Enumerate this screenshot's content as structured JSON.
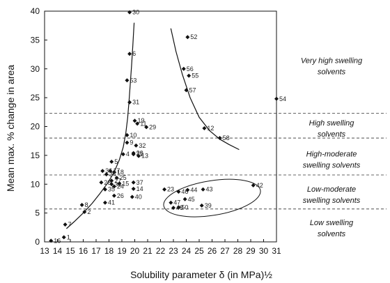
{
  "chart_data": {
    "type": "scatter",
    "xlabel": "Solubility parameter δ (in MPa)½",
    "ylabel": "Mean max. % change in area",
    "xlim": [
      13,
      31
    ],
    "ylim": [
      0,
      40
    ],
    "x_ticks": [
      13,
      14,
      15,
      16,
      17,
      18,
      19,
      20,
      21,
      22,
      23,
      24,
      25,
      26,
      27,
      28,
      29,
      30,
      31
    ],
    "y_ticks": [
      0,
      5,
      10,
      15,
      20,
      25,
      30,
      35,
      40
    ],
    "marker": "diamond",
    "color": "#111111",
    "points": [
      {
        "label": "1",
        "x": 14.5,
        "y": 0.8
      },
      {
        "label": "2",
        "x": 16.1,
        "y": 5.2
      },
      {
        "label": "7",
        "x": 14.6,
        "y": 3.0
      },
      {
        "label": "8",
        "x": 15.9,
        "y": 6.4
      },
      {
        "label": "16",
        "x": 13.5,
        "y": 0.2
      },
      {
        "label": "4",
        "x": 19.1,
        "y": 15.2
      },
      {
        "label": "5",
        "x": 18.2,
        "y": 13.9
      },
      {
        "label": "9",
        "x": 19.4,
        "y": 17.2
      },
      {
        "label": "10",
        "x": 19.4,
        "y": 18.5
      },
      {
        "label": "11",
        "x": 20.2,
        "y": 20.5
      },
      {
        "label": "13",
        "x": 20.3,
        "y": 14.9
      },
      {
        "label": "14",
        "x": 19.9,
        "y": 9.2
      },
      {
        "label": "15",
        "x": 18.8,
        "y": 10.1
      },
      {
        "label": "17",
        "x": 18.1,
        "y": 12.3
      },
      {
        "label": "18",
        "x": 18.4,
        "y": 12.1
      },
      {
        "label": "19",
        "x": 20.0,
        "y": 21.0
      },
      {
        "label": "20",
        "x": 19.9,
        "y": 15.4
      },
      {
        "label": "21",
        "x": 19.9,
        "y": 15.2
      },
      {
        "label": "23",
        "x": 22.3,
        "y": 9.1
      },
      {
        "label": "24",
        "x": 18.4,
        "y": 9.6
      },
      {
        "label": "25",
        "x": 18.6,
        "y": 11.1
      },
      {
        "label": "26",
        "x": 18.4,
        "y": 8.0
      },
      {
        "label": "27",
        "x": 18.2,
        "y": 10.6
      },
      {
        "label": "28",
        "x": 17.4,
        "y": 10.3
      },
      {
        "label": "29",
        "x": 20.9,
        "y": 19.9
      },
      {
        "label": "30",
        "x": 19.6,
        "y": 39.8
      },
      {
        "label": "31",
        "x": 19.6,
        "y": 24.2
      },
      {
        "label": "32",
        "x": 20.1,
        "y": 16.7
      },
      {
        "label": "33",
        "x": 18.2,
        "y": 10.0
      },
      {
        "label": "34",
        "x": 17.8,
        "y": 11.7
      },
      {
        "label": "35",
        "x": 17.7,
        "y": 9.1
      },
      {
        "label": "36",
        "x": 17.5,
        "y": 12.3
      },
      {
        "label": "37",
        "x": 19.9,
        "y": 10.3
      },
      {
        "label": "39",
        "x": 25.2,
        "y": 6.3
      },
      {
        "label": "40",
        "x": 19.8,
        "y": 7.8
      },
      {
        "label": "41",
        "x": 17.7,
        "y": 6.8
      },
      {
        "label": "42",
        "x": 29.2,
        "y": 9.8
      },
      {
        "label": "43",
        "x": 25.3,
        "y": 9.1
      },
      {
        "label": "44",
        "x": 24.1,
        "y": 9.0
      },
      {
        "label": "45",
        "x": 23.9,
        "y": 7.4
      },
      {
        "label": "46",
        "x": 23.4,
        "y": 8.7
      },
      {
        "label": "47",
        "x": 22.8,
        "y": 6.8
      },
      {
        "label": "48",
        "x": 23.0,
        "y": 5.9
      },
      {
        "label": "50",
        "x": 23.4,
        "y": 6.0
      },
      {
        "label": "52",
        "x": 24.1,
        "y": 35.5
      },
      {
        "label": "53",
        "x": 19.4,
        "y": 28.0
      },
      {
        "label": "54",
        "x": 31.0,
        "y": 24.8
      },
      {
        "label": "55",
        "x": 24.2,
        "y": 28.8
      },
      {
        "label": "56",
        "x": 23.8,
        "y": 30.0
      },
      {
        "label": "57",
        "x": 24.0,
        "y": 26.3
      },
      {
        "label": "58",
        "x": 26.6,
        "y": 18.0
      },
      {
        "label": "12",
        "x": 25.4,
        "y": 19.7
      },
      {
        "label": "6",
        "x": 19.6,
        "y": 32.6
      }
    ],
    "curves": [
      {
        "x": [
          14.7,
          15.3,
          16.0,
          16.7,
          17.3,
          17.9,
          18.4,
          18.8,
          19.1,
          19.3,
          19.45,
          19.55,
          19.65,
          19.75,
          19.85,
          19.95
        ],
        "y": [
          2.3,
          3.5,
          5.0,
          6.7,
          8.4,
          10.2,
          12.1,
          14.2,
          16.4,
          18.8,
          21.5,
          24.3,
          27.3,
          30.5,
          34.0,
          38.0
        ]
      },
      {
        "x": [
          22.8,
          23.2,
          23.7,
          24.3,
          25.0,
          25.8,
          26.6,
          27.3,
          28.1
        ],
        "y": [
          37.0,
          33.0,
          29.0,
          25.0,
          21.6,
          19.3,
          17.8,
          16.9,
          16.0
        ]
      }
    ],
    "ellipse": {
      "cx": 26.0,
      "cy": 7.6,
      "rx": 3.8,
      "ry": 3.0,
      "angle_deg": -9
    },
    "thresholds": [
      22.3,
      18.0,
      11.6,
      5.7
    ],
    "regions": [
      {
        "lines": [
          "Very high swelling",
          "solvents"
        ],
        "y": 31.0
      },
      {
        "lines": [
          "High swelling",
          "solvents"
        ],
        "y": 20.2
      },
      {
        "lines": [
          "High-moderate",
          "swelling solvents"
        ],
        "y": 14.8
      },
      {
        "lines": [
          "Low-moderate",
          "swelling solvents"
        ],
        "y": 8.7
      },
      {
        "lines": [
          "Low swelling",
          "solvents"
        ],
        "y": 2.9
      }
    ]
  }
}
